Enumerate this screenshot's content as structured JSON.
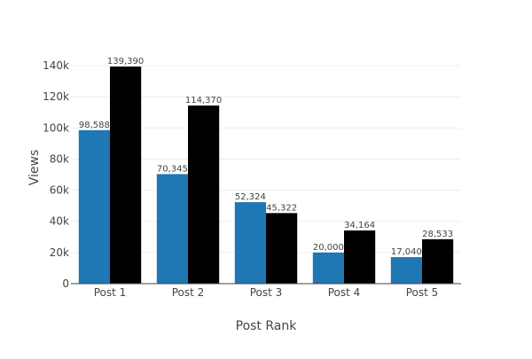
{
  "chart_data": {
    "type": "bar",
    "title": "",
    "xlabel": "Post Rank",
    "ylabel": "Views",
    "categories": [
      "Post 1",
      "Post 2",
      "Post 3",
      "Post 4",
      "Post 5"
    ],
    "series": [
      {
        "values": [
          98588,
          70345,
          52324,
          20000,
          17040
        ],
        "labels": [
          "98,588",
          "70,345",
          "52,324",
          "20,000",
          "17,040"
        ],
        "color": "#1f77b4"
      },
      {
        "values": [
          139390,
          114370,
          45322,
          34164,
          28533
        ],
        "labels": [
          "139,390",
          "114,370",
          "45,322",
          "34,164",
          "28,533"
        ],
        "color": "#000000"
      }
    ],
    "ylim": [
      0,
      148000
    ],
    "yticks": [
      0,
      20000,
      40000,
      60000,
      80000,
      100000,
      120000,
      140000
    ],
    "ytick_labels": [
      "0",
      "20k",
      "40k",
      "60k",
      "80k",
      "100k",
      "120k",
      "140k"
    ],
    "grid": true,
    "legend": false
  }
}
